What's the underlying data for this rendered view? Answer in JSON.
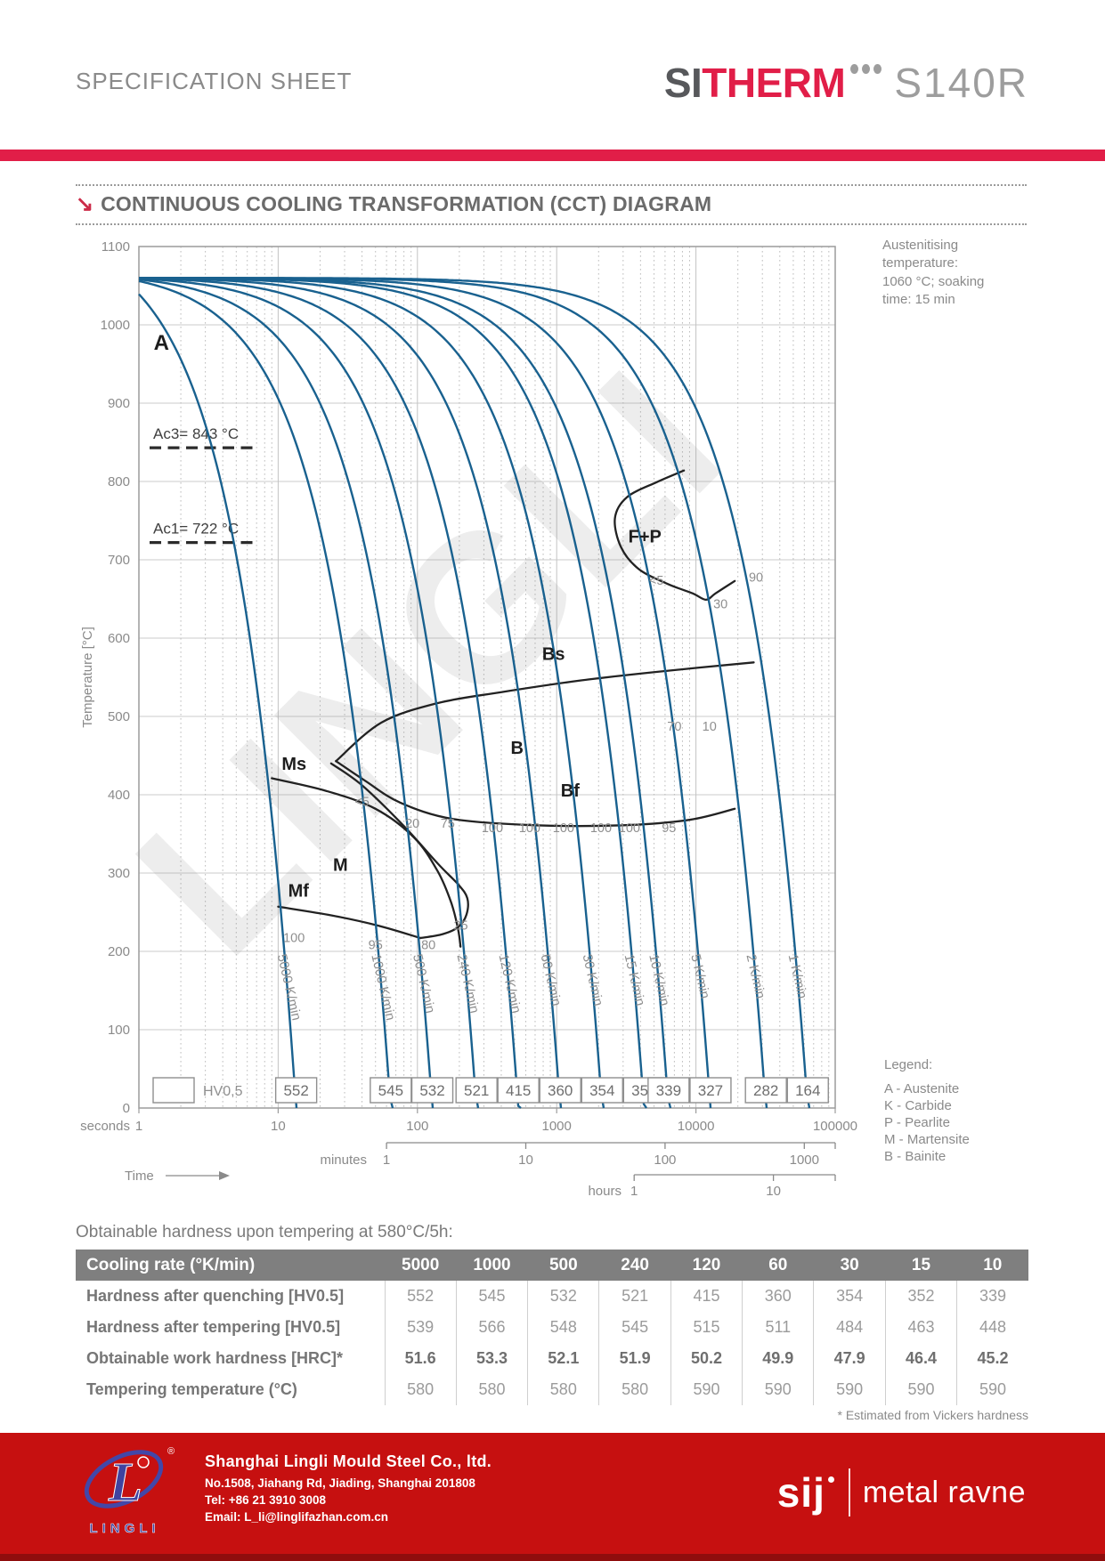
{
  "page": {
    "header": {
      "doc_type": "SPECIFICATION SHEET",
      "brand_prefix": "SI",
      "brand_suffix": "THERM",
      "product": "S140R"
    },
    "section": {
      "title": "CONTINUOUS COOLING TRANSFORMATION (CCT) DIAGRAM"
    }
  },
  "chart_data": {
    "type": "line",
    "title": "CONTINUOUS COOLING TRANSFORMATION (CCT) DIAGRAM",
    "xlabel": "Time",
    "ylabel": "Temperature [°C]",
    "x_scale": "log",
    "x_range_seconds": [
      1,
      100000
    ],
    "ylim": [
      0,
      1100
    ],
    "y_tick_step": 100,
    "grid": true,
    "watermark": "LINGLI",
    "austenitising_note": "Austenitising\ntemperature:\n1060 °C; soaking\ntime: 15 min",
    "initial_temperature_c": 1060,
    "critical_lines": [
      {
        "label": "Ac3= 843 °C",
        "temp_c": 843
      },
      {
        "label": "Ac1= 722 °C",
        "temp_c": 722
      }
    ],
    "axis_units": {
      "seconds": {
        "label": "seconds",
        "ticks": [
          1,
          10,
          100,
          1000,
          10000,
          100000
        ]
      },
      "minutes": {
        "label": "minutes",
        "ticks": [
          1,
          10,
          100,
          1000
        ]
      },
      "hours": {
        "label": "hours",
        "ticks": [
          1,
          10
        ]
      }
    },
    "cooling_curves": [
      {
        "rate_k_min": 5000,
        "label": "5000 K/min",
        "hardness_hv05": 552
      },
      {
        "rate_k_min": 1000,
        "label": "1000 K/min",
        "hardness_hv05": 545
      },
      {
        "rate_k_min": 500,
        "label": "500 K/min",
        "hardness_hv05": 532
      },
      {
        "rate_k_min": 240,
        "label": "240 K/min",
        "hardness_hv05": 521
      },
      {
        "rate_k_min": 120,
        "label": "120 K/min",
        "hardness_hv05": 415
      },
      {
        "rate_k_min": 60,
        "label": "60 K/min",
        "hardness_hv05": 360
      },
      {
        "rate_k_min": 30,
        "label": "30 K/min",
        "hardness_hv05": 354
      },
      {
        "rate_k_min": 15,
        "label": "15 K/min",
        "hardness_hv05": 352
      },
      {
        "rate_k_min": 10,
        "label": "10 K/min",
        "hardness_hv05": 339
      },
      {
        "rate_k_min": 5,
        "label": "5 K/min",
        "hardness_hv05": 327
      },
      {
        "rate_k_min": 2,
        "label": "2 K/min",
        "hardness_hv05": 282
      },
      {
        "rate_k_min": 1,
        "label": "1 K/min",
        "hardness_hv05": 164
      }
    ],
    "hardness_box_label": "HV0,5",
    "phase_boundaries": {
      "Bs": [
        [
          26,
          443
        ],
        [
          55,
          492
        ],
        [
          140,
          517
        ],
        [
          400,
          531
        ],
        [
          1500,
          546
        ],
        [
          6000,
          558
        ],
        [
          26000,
          569
        ]
      ],
      "Bf": [
        [
          26,
          443
        ],
        [
          42,
          418
        ],
        [
          75,
          390
        ],
        [
          180,
          369
        ],
        [
          700,
          361
        ],
        [
          3000,
          361
        ],
        [
          9000,
          368
        ],
        [
          19000,
          382
        ]
      ],
      "FP": [
        [
          8200,
          814
        ],
        [
          5200,
          799
        ],
        [
          3200,
          780
        ],
        [
          2620,
          753
        ],
        [
          2900,
          716
        ],
        [
          3900,
          688
        ],
        [
          6300,
          669
        ],
        [
          9500,
          657
        ],
        [
          11800,
          649
        ],
        [
          13800,
          657
        ],
        [
          19000,
          673
        ]
      ],
      "Ms": [
        [
          9,
          421
        ],
        [
          22,
          405
        ],
        [
          50,
          382
        ],
        [
          95,
          345
        ],
        [
          140,
          302
        ],
        [
          175,
          262
        ],
        [
          196,
          228
        ],
        [
          204,
          206
        ]
      ],
      "M_loop": [
        [
          24,
          440
        ],
        [
          40,
          412
        ],
        [
          80,
          360
        ],
        [
          140,
          312
        ],
        [
          195,
          286
        ],
        [
          228,
          268
        ],
        [
          225,
          247
        ],
        [
          196,
          231
        ],
        [
          152,
          222
        ],
        [
          105,
          217
        ]
      ],
      "Mf": [
        [
          10,
          257
        ],
        [
          24,
          246
        ],
        [
          52,
          233
        ],
        [
          105,
          217
        ]
      ]
    },
    "phase_labels": [
      {
        "text": "A",
        "t_s": 1.45,
        "temp_c": 968
      },
      {
        "text": "F+P",
        "t_s": 4300,
        "temp_c": 722
      },
      {
        "text": "Bs",
        "t_s": 950,
        "temp_c": 572
      },
      {
        "text": "B",
        "t_s": 520,
        "temp_c": 452
      },
      {
        "text": "Bf",
        "t_s": 1250,
        "temp_c": 398
      },
      {
        "text": "Ms",
        "t_s": 13,
        "temp_c": 432
      },
      {
        "text": "M",
        "t_s": 28,
        "temp_c": 303
      },
      {
        "text": "Mf",
        "t_s": 14,
        "temp_c": 270
      }
    ],
    "percent_labels": [
      {
        "text": "<5",
        "t_s": 5200,
        "temp_c": 668
      },
      {
        "text": "30",
        "t_s": 15000,
        "temp_c": 638
      },
      {
        "text": "90",
        "t_s": 27000,
        "temp_c": 672
      },
      {
        "text": "<5",
        "t_s": 40,
        "temp_c": 386
      },
      {
        "text": "20",
        "t_s": 92,
        "temp_c": 358
      },
      {
        "text": "75",
        "t_s": 165,
        "temp_c": 358
      },
      {
        "text": "100",
        "t_s": 345,
        "temp_c": 352
      },
      {
        "text": "100",
        "t_s": 640,
        "temp_c": 352
      },
      {
        "text": "100",
        "t_s": 1120,
        "temp_c": 352
      },
      {
        "text": "100",
        "t_s": 2080,
        "temp_c": 352
      },
      {
        "text": "100",
        "t_s": 3330,
        "temp_c": 352
      },
      {
        "text": "95",
        "t_s": 6400,
        "temp_c": 352
      },
      {
        "text": "70",
        "t_s": 7000,
        "temp_c": 482
      },
      {
        "text": "10",
        "t_s": 12500,
        "temp_c": 482
      },
      {
        "text": "100",
        "t_s": 13,
        "temp_c": 212
      },
      {
        "text": "95",
        "t_s": 50,
        "temp_c": 203
      },
      {
        "text": "80",
        "t_s": 120,
        "temp_c": 203
      },
      {
        "text": "25",
        "t_s": 205,
        "temp_c": 228
      }
    ],
    "legend": {
      "title": "Legend:",
      "items": [
        "A - Austenite",
        "K - Carbide",
        "P - Pearlite",
        "M - Martensite",
        "B - Bainite"
      ]
    }
  },
  "hardness_table": {
    "title": "Obtainable hardness upon tempering at 580°C/5h:",
    "header_label": "Cooling rate (°K/min)",
    "columns": [
      "5000",
      "1000",
      "500",
      "240",
      "120",
      "60",
      "30",
      "15",
      "10"
    ],
    "rows": [
      {
        "label": "Hardness after quenching [HV0.5]",
        "values": [
          "552",
          "545",
          "532",
          "521",
          "415",
          "360",
          "354",
          "352",
          "339"
        ],
        "bold": false
      },
      {
        "label": "Hardness after tempering [HV0.5]",
        "values": [
          "539",
          "566",
          "548",
          "545",
          "515",
          "511",
          "484",
          "463",
          "448"
        ],
        "bold": false
      },
      {
        "label": "Obtainable work hardness [HRC]*",
        "values": [
          "51.6",
          "53.3",
          "52.1",
          "51.9",
          "50.2",
          "49.9",
          "47.9",
          "46.4",
          "45.2"
        ],
        "bold": true
      },
      {
        "label": "Tempering temperature (°C)",
        "values": [
          "580",
          "580",
          "580",
          "580",
          "590",
          "590",
          "590",
          "590",
          "590"
        ],
        "bold": false
      }
    ],
    "footnote": "* Estimated from Vickers hardness"
  },
  "footer": {
    "company": "Shanghai Lingli Mould Steel Co., ltd.",
    "address": "No.1508, Jiahang Rd, Jiading, Shanghai 201808",
    "tel": "Tel:  +86 21 3910 3008",
    "email": "Email:  L_li@linglifazhan.com.cn",
    "logo_text": "LINGLI",
    "partner_brand": "sij",
    "partner_name": "metal ravne"
  },
  "colors": {
    "accent_red": "#e11e48",
    "footer_red": "#c61010",
    "curve_blue": "#19618f",
    "logo_blue": "#3f43a0",
    "text_gray": "#8a8a8a",
    "table_header_bg": "#7f7f7f"
  }
}
